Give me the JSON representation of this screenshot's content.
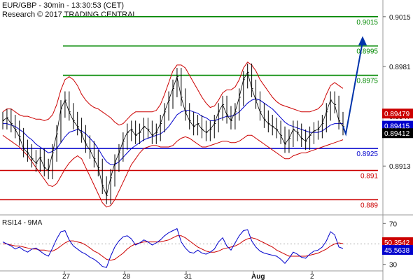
{
  "header": {
    "line1": "EUR/GBP - 30min - 13:30:53 (CET)",
    "line2": "Research © 2017 TRADING CENTRAL"
  },
  "colors": {
    "price": "#000000",
    "bollinger": "#cc0000",
    "moving_average": "#0000cc",
    "support": "#0000cc",
    "resistance": "#008800",
    "stop": "#cc0000",
    "arrow": "#0033aa",
    "badge_red": "#cc0000",
    "badge_blue": "#0000cc",
    "badge_black": "#000000"
  },
  "chart_data": [
    {
      "type": "line",
      "title": "",
      "instrument": "EUR/GBP",
      "timeframe": "30min",
      "x_labels": [
        "27",
        "28",
        "31",
        "Aug",
        "2"
      ],
      "y_ticks": [
        0.9015,
        0.8981,
        0.8947,
        0.8913
      ],
      "y_tick_labels": [
        "0.9015",
        "0.8981",
        "0.8947",
        "0.8913"
      ],
      "ylim": [
        0.8883,
        0.9024
      ],
      "grid": false,
      "series": [
        {
          "name": "",
          "role": "price",
          "values": [
            0.8944,
            0.8946,
            0.8942,
            0.8938,
            0.8933,
            0.8925,
            0.8922,
            0.8918,
            0.8915,
            0.8919,
            0.8912,
            0.891,
            0.8922,
            0.8935,
            0.8952,
            0.8958,
            0.895,
            0.8944,
            0.894,
            0.8935,
            0.8928,
            0.8924,
            0.8918,
            0.8912,
            0.89,
            0.8893,
            0.8905,
            0.8915,
            0.8922,
            0.893,
            0.8936,
            0.8938,
            0.8934,
            0.8936,
            0.894,
            0.8938,
            0.8934,
            0.8936,
            0.8942,
            0.895,
            0.8958,
            0.8966,
            0.8974,
            0.896,
            0.895,
            0.8944,
            0.894,
            0.8942,
            0.8938,
            0.8936,
            0.8938,
            0.8942,
            0.895,
            0.8955,
            0.8948,
            0.8944,
            0.895,
            0.896,
            0.8972,
            0.8977,
            0.8966,
            0.8958,
            0.895,
            0.8945,
            0.8942,
            0.894,
            0.8938,
            0.8934,
            0.8928,
            0.8932,
            0.8938,
            0.8936,
            0.8932,
            0.893,
            0.8934,
            0.8937,
            0.8938,
            0.8942,
            0.895,
            0.8958,
            0.8955,
            0.8944,
            0.894
          ]
        },
        {
          "name": "",
          "role": "moving-average",
          "values": [
            0.8942,
            0.8942,
            0.8941,
            0.894,
            0.8938,
            0.8936,
            0.8933,
            0.8931,
            0.8928,
            0.8926,
            0.8924,
            0.8922,
            0.8923,
            0.8925,
            0.8929,
            0.8933,
            0.8936,
            0.8937,
            0.8938,
            0.8937,
            0.8935,
            0.8932,
            0.8929,
            0.8925,
            0.892,
            0.8916,
            0.8914,
            0.8914,
            0.8916,
            0.8919,
            0.8922,
            0.8925,
            0.8927,
            0.8929,
            0.8931,
            0.8932,
            0.8933,
            0.8934,
            0.8935,
            0.8937,
            0.894,
            0.8944,
            0.8948,
            0.895,
            0.8951,
            0.8951,
            0.895,
            0.8949,
            0.8947,
            0.8946,
            0.8944,
            0.8944,
            0.8945,
            0.8946,
            0.8947,
            0.8947,
            0.8948,
            0.895,
            0.8953,
            0.8956,
            0.8958,
            0.8959,
            0.8958,
            0.8956,
            0.8954,
            0.8952,
            0.8949,
            0.8946,
            0.8943,
            0.8941,
            0.894,
            0.8939,
            0.8938,
            0.8937,
            0.8936,
            0.8936,
            0.8936,
            0.8937,
            0.8939,
            0.8941,
            0.8942,
            0.8942,
            0.8942
          ]
        },
        {
          "name": "",
          "role": "bollinger-upper",
          "values": [
            0.895,
            0.8952,
            0.8952,
            0.895,
            0.8948,
            0.8947,
            0.8947,
            0.8946,
            0.8945,
            0.8945,
            0.8944,
            0.8945,
            0.8948,
            0.8955,
            0.8965,
            0.8972,
            0.8974,
            0.8972,
            0.8968,
            0.8962,
            0.8958,
            0.8955,
            0.8953,
            0.8952,
            0.895,
            0.8948,
            0.8946,
            0.8943,
            0.8941,
            0.8942,
            0.8945,
            0.8948,
            0.895,
            0.895,
            0.895,
            0.895,
            0.895,
            0.8951,
            0.8955,
            0.8962,
            0.897,
            0.8978,
            0.8982,
            0.8982,
            0.898,
            0.8975,
            0.897,
            0.8965,
            0.896,
            0.8956,
            0.8953,
            0.8954,
            0.8958,
            0.8963,
            0.8965,
            0.8965,
            0.8967,
            0.8972,
            0.898,
            0.8984,
            0.8982,
            0.8978,
            0.8972,
            0.8968,
            0.8964,
            0.896,
            0.8957,
            0.8955,
            0.8954,
            0.8953,
            0.8952,
            0.8951,
            0.895,
            0.895,
            0.895,
            0.8951,
            0.8952,
            0.8955,
            0.8962,
            0.8968,
            0.897,
            0.8968,
            0.8966
          ]
        },
        {
          "name": "",
          "role": "bollinger-lower",
          "values": [
            0.8934,
            0.8932,
            0.893,
            0.8928,
            0.8926,
            0.8923,
            0.892,
            0.8916,
            0.8912,
            0.8908,
            0.8904,
            0.89,
            0.8899,
            0.8901,
            0.8906,
            0.8911,
            0.8915,
            0.8918,
            0.892,
            0.8918,
            0.8912,
            0.8906,
            0.89,
            0.8894,
            0.8888,
            0.8885,
            0.8886,
            0.889,
            0.8896,
            0.8902,
            0.8908,
            0.8914,
            0.8918,
            0.8922,
            0.8925,
            0.8926,
            0.8927,
            0.8927,
            0.8926,
            0.8926,
            0.8926,
            0.8927,
            0.893,
            0.8932,
            0.8933,
            0.8932,
            0.893,
            0.8928,
            0.8926,
            0.8926,
            0.8927,
            0.8928,
            0.8929,
            0.893,
            0.893,
            0.8929,
            0.8929,
            0.893,
            0.8932,
            0.8934,
            0.8934,
            0.8932,
            0.893,
            0.8928,
            0.8926,
            0.8924,
            0.8922,
            0.892,
            0.8918,
            0.8918,
            0.892,
            0.8921,
            0.8922,
            0.8922,
            0.8923,
            0.8924,
            0.8925,
            0.8926,
            0.8927,
            0.8928,
            0.8929,
            0.893,
            0.8931
          ]
        }
      ],
      "levels": [
        {
          "value": 0.9015,
          "label": "0.9015",
          "role": "resistance"
        },
        {
          "value": 0.8995,
          "label": "0.8995",
          "role": "resistance"
        },
        {
          "value": 0.8975,
          "label": "0.8975",
          "role": "resistance"
        },
        {
          "value": 0.8925,
          "label": "0.8925",
          "role": "pivot"
        },
        {
          "value": 0.891,
          "label": "0.891",
          "role": "support"
        },
        {
          "value": 0.889,
          "label": "0.889",
          "role": "support"
        }
      ],
      "projection": {
        "from": 0.8935,
        "to": 0.8995
      },
      "price_badges": [
        {
          "value": 0.89479,
          "label": "0.89479",
          "color": "#cc0000"
        },
        {
          "value": 0.89415,
          "label": "0.89415",
          "color": "#0000cc"
        },
        {
          "value": 0.89412,
          "label": "0.89412",
          "color": "#000000"
        }
      ]
    },
    {
      "type": "line",
      "title": "RSI14 - 9MA",
      "y_ticks": [
        70,
        30
      ],
      "y_tick_labels": [
        "70",
        "30"
      ],
      "ylim": [
        25,
        75
      ],
      "reference": 50,
      "series": [
        {
          "name": "",
          "role": "rsi",
          "values": [
            52,
            50,
            48,
            45,
            47,
            44,
            42,
            45,
            46,
            43,
            40,
            38,
            46,
            55,
            62,
            63,
            54,
            48,
            45,
            42,
            40,
            37,
            35,
            32,
            28,
            27,
            38,
            47,
            53,
            57,
            58,
            55,
            49,
            51,
            54,
            52,
            49,
            51,
            54,
            58,
            61,
            63,
            65,
            52,
            46,
            42,
            41,
            44,
            41,
            40,
            42,
            45,
            52,
            56,
            48,
            44,
            51,
            58,
            63,
            64,
            53,
            47,
            43,
            41,
            40,
            39,
            38,
            35,
            31,
            36,
            42,
            40,
            37,
            36,
            40,
            43,
            44,
            47,
            53,
            62,
            59,
            47,
            45.5638
          ]
        },
        {
          "name": "",
          "role": "rsi-ma",
          "values": [
            50,
            50,
            49,
            48,
            48,
            47,
            46,
            45,
            45,
            44,
            44,
            43,
            43,
            45,
            48,
            51,
            53,
            53,
            52,
            51,
            49,
            46,
            43,
            41,
            38,
            35,
            34,
            35,
            38,
            41,
            45,
            48,
            50,
            51,
            52,
            52,
            52,
            52,
            52,
            53,
            54,
            56,
            58,
            58,
            56,
            53,
            50,
            47,
            45,
            43,
            42,
            42,
            43,
            45,
            46,
            47,
            48,
            50,
            53,
            55,
            56,
            55,
            53,
            51,
            49,
            47,
            44,
            42,
            40,
            38,
            38,
            38,
            38,
            38,
            39,
            40,
            41,
            43,
            45,
            48,
            50,
            51,
            50.3542
          ]
        }
      ],
      "value_badges": [
        {
          "value": 50.3542,
          "label": "50.3542",
          "color": "#cc0000"
        },
        {
          "value": 45.5638,
          "label": "45.5638",
          "color": "#0000cc"
        }
      ]
    }
  ]
}
